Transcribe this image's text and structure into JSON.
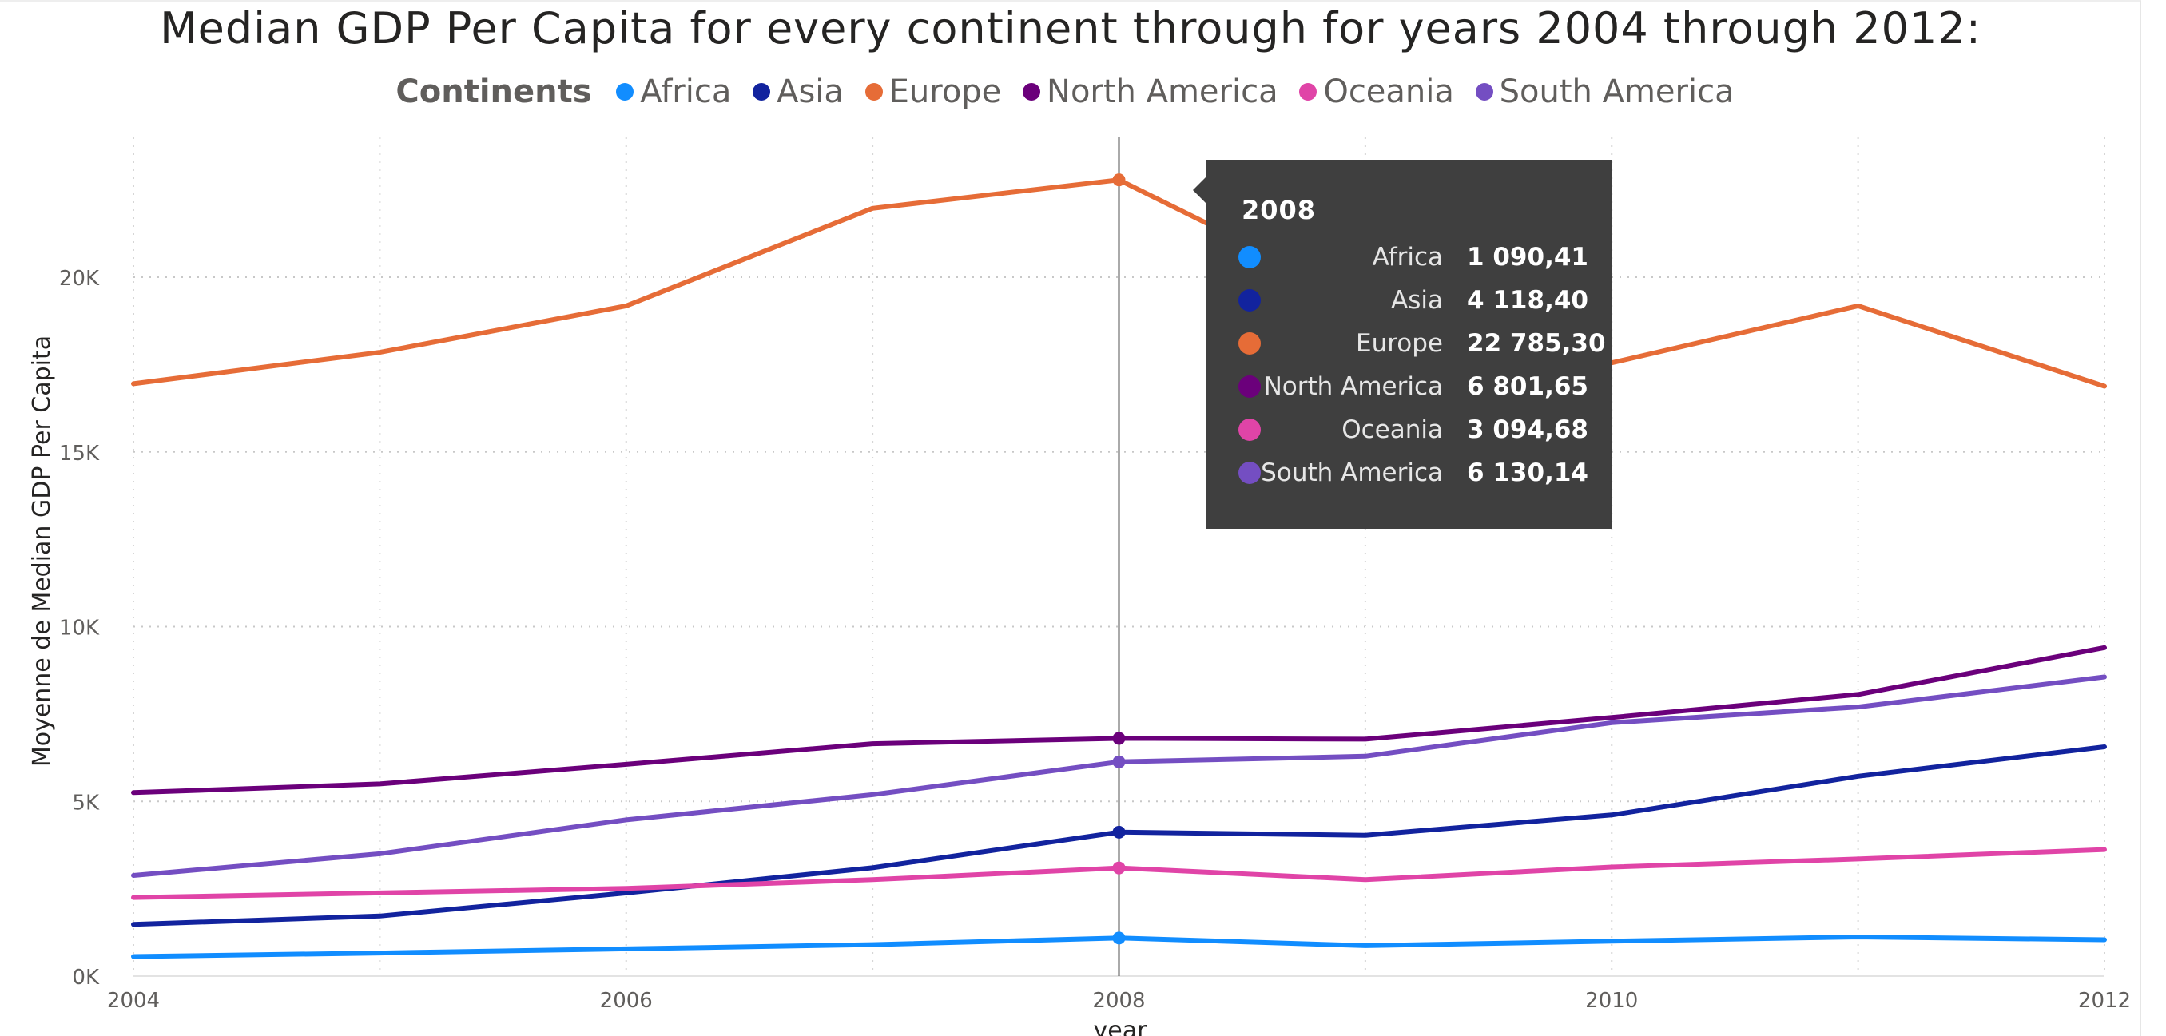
{
  "title": "Median GDP Per Capita for every continent through for years 2004 through 2012:",
  "legend": {
    "title": "Continents",
    "items": [
      {
        "label": "Africa",
        "color": "#118DFF"
      },
      {
        "label": "Asia",
        "color": "#12239E"
      },
      {
        "label": "Europe",
        "color": "#E66C37"
      },
      {
        "label": "North America",
        "color": "#6B007B"
      },
      {
        "label": "Oceania",
        "color": "#E044A7"
      },
      {
        "label": "South America",
        "color": "#744EC2"
      }
    ]
  },
  "tooltip": {
    "year": "2008",
    "rows": [
      {
        "name": "Africa",
        "value": "1 090,41",
        "color": "#118DFF"
      },
      {
        "name": "Asia",
        "value": "4 118,40",
        "color": "#12239E"
      },
      {
        "name": "Europe",
        "value": "22 785,30",
        "color": "#E66C37"
      },
      {
        "name": "North America",
        "value": "6 801,65",
        "color": "#6B007B"
      },
      {
        "name": "Oceania",
        "value": "3 094,68",
        "color": "#E044A7"
      },
      {
        "name": "South America",
        "value": "6 130,14",
        "color": "#744EC2"
      }
    ]
  },
  "chart_data": {
    "type": "line",
    "title": "Median GDP Per Capita for every continent through for years 2004 through 2012:",
    "xlabel": "year",
    "ylabel": "Moyenne de Median GDP Per Capita",
    "x": [
      2004,
      2005,
      2006,
      2007,
      2008,
      2009,
      2010,
      2011,
      2012
    ],
    "x_ticks": [
      "2004",
      "2006",
      "2008",
      "2010",
      "2012"
    ],
    "x_tick_values": [
      2004,
      2006,
      2008,
      2010,
      2012
    ],
    "y_ticks": [
      "0K",
      "5K",
      "10K",
      "15K",
      "20K"
    ],
    "y_tick_values": [
      0,
      5000,
      10000,
      15000,
      20000
    ],
    "xlim": [
      2004,
      2012
    ],
    "ylim": [
      0,
      24000
    ],
    "grid": true,
    "legend_position": "top-center",
    "hover_x": 2008,
    "series": [
      {
        "name": "Africa",
        "color": "#118DFF",
        "values": [
          560,
          660,
          780,
          900,
          1090,
          870,
          1000,
          1120,
          1040
        ]
      },
      {
        "name": "Asia",
        "color": "#12239E",
        "values": [
          1480,
          1720,
          2380,
          3100,
          4118,
          4030,
          4610,
          5720,
          6560
        ]
      },
      {
        "name": "Europe",
        "color": "#E66C37",
        "values": [
          16950,
          17850,
          19180,
          21970,
          22785,
          19300,
          17550,
          19180,
          16880
        ]
      },
      {
        "name": "North America",
        "color": "#6B007B",
        "values": [
          5250,
          5500,
          6060,
          6650,
          6802,
          6780,
          7400,
          8060,
          9400
        ]
      },
      {
        "name": "Oceania",
        "color": "#E044A7",
        "values": [
          2250,
          2380,
          2510,
          2760,
          3095,
          2760,
          3120,
          3350,
          3620
        ]
      },
      {
        "name": "South America",
        "color": "#744EC2",
        "values": [
          2880,
          3500,
          4470,
          5190,
          6130,
          6290,
          7250,
          7700,
          8560
        ]
      }
    ]
  }
}
